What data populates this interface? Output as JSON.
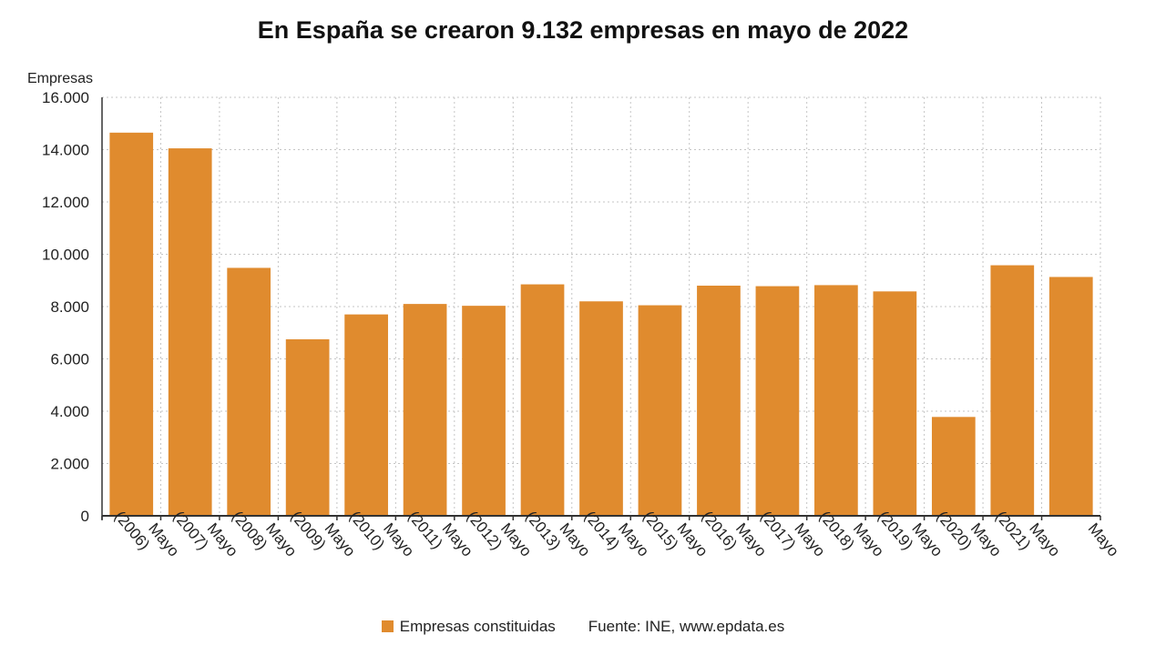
{
  "title": "En España se crearon 9.132 empresas en mayo de 2022",
  "legend": {
    "label": "Empresas constituidas"
  },
  "source": "Fuente: INE, www.epdata.es",
  "colors": {
    "bar": "#e08b2e",
    "grid": "#c5c5c5",
    "axis": "#333333"
  },
  "chart_data": {
    "type": "bar",
    "title": "En España se crearon 9.132 empresas en mayo de 2022",
    "ylabel": "Empresas",
    "xlabel": "",
    "ylim": [
      0,
      16000
    ],
    "yticks": [
      "0",
      "2.000",
      "4.000",
      "6.000",
      "8.000",
      "10.000",
      "12.000",
      "14.000",
      "16.000"
    ],
    "grid": true,
    "legend_position": "bottom",
    "categories": [
      [
        "Mayo",
        "(2006)"
      ],
      [
        "Mayo",
        "(2007)"
      ],
      [
        "Mayo",
        "(2008)"
      ],
      [
        "Mayo",
        "(2009)"
      ],
      [
        "Mayo",
        "(2010)"
      ],
      [
        "Mayo",
        "(2011)"
      ],
      [
        "Mayo",
        "(2012)"
      ],
      [
        "Mayo",
        "(2013)"
      ],
      [
        "Mayo",
        "(2014)"
      ],
      [
        "Mayo",
        "(2015)"
      ],
      [
        "Mayo",
        "(2016)"
      ],
      [
        "Mayo",
        "(2017)"
      ],
      [
        "Mayo",
        "(2018)"
      ],
      [
        "Mayo",
        "(2019)"
      ],
      [
        "Mayo",
        "(2020)"
      ],
      [
        "Mayo",
        "(2021)"
      ],
      [
        "Mayo"
      ]
    ],
    "series": [
      {
        "name": "Empresas constituidas",
        "values": [
          14650,
          14050,
          9480,
          6750,
          7700,
          8100,
          8030,
          8850,
          8200,
          8050,
          8800,
          8780,
          8820,
          8580,
          3780,
          9580,
          9132
        ]
      }
    ]
  }
}
